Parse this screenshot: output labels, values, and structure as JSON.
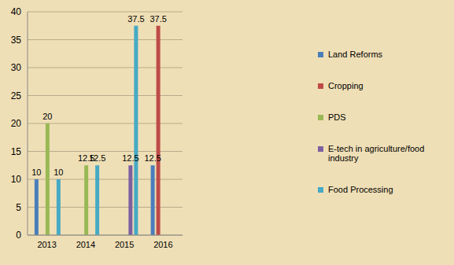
{
  "chart_data": {
    "type": "bar",
    "categories": [
      "2013",
      "2014",
      "2015",
      "2016"
    ],
    "series": [
      {
        "name": "Land Reforms",
        "color": "#4a7ebb",
        "values": [
          10,
          0,
          0,
          12.5
        ]
      },
      {
        "name": "Cropping",
        "color": "#be4b48",
        "values": [
          0,
          0,
          0,
          37.5
        ]
      },
      {
        "name": "PDS",
        "color": "#98b954",
        "values": [
          20,
          12.5,
          0,
          0
        ]
      },
      {
        "name": "E-tech in agriculture/food industry",
        "color": "#7d60a0",
        "values": [
          0,
          0,
          12.5,
          0
        ]
      },
      {
        "name": "Food Processing",
        "color": "#46aac5",
        "values": [
          10,
          12.5,
          37.5,
          0
        ]
      }
    ],
    "ylim": [
      0,
      40
    ],
    "yticks": [
      0,
      5,
      10,
      15,
      20,
      25,
      30,
      35,
      40
    ],
    "grid": true,
    "data_labels": true,
    "legend": "right"
  }
}
